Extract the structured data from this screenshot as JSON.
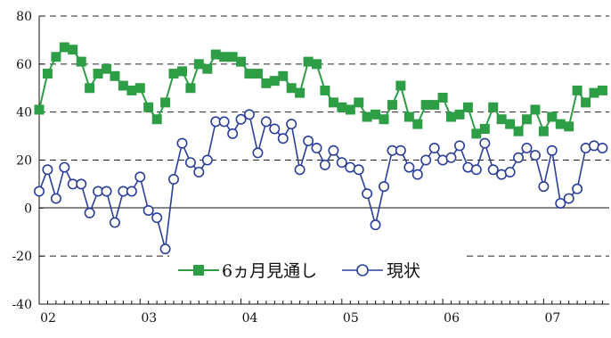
{
  "chart_data": {
    "type": "line",
    "title": "",
    "xlabel": "",
    "ylabel": "",
    "ylim": [
      -40,
      80
    ],
    "yticks": [
      -40,
      -20,
      0,
      20,
      40,
      60,
      80
    ],
    "y_tick_labels": [
      "-40",
      "-20",
      "0",
      "20",
      "40",
      "60",
      "80"
    ],
    "xlim": [
      2002.0,
      2007.65
    ],
    "x_tick_labels": [
      "02",
      "03",
      "04",
      "05",
      "06",
      "07"
    ],
    "grid": "horizontal dashed",
    "legend_position": "lower-center",
    "x": [
      2002.0,
      2002.083,
      2002.167,
      2002.25,
      2002.333,
      2002.417,
      2002.5,
      2002.583,
      2002.667,
      2002.75,
      2002.833,
      2002.917,
      2003.0,
      2003.083,
      2003.167,
      2003.25,
      2003.333,
      2003.417,
      2003.5,
      2003.583,
      2003.667,
      2003.75,
      2003.833,
      2003.917,
      2004.0,
      2004.083,
      2004.167,
      2004.25,
      2004.333,
      2004.417,
      2004.5,
      2004.583,
      2004.667,
      2004.75,
      2004.833,
      2004.917,
      2005.0,
      2005.083,
      2005.167,
      2005.25,
      2005.333,
      2005.417,
      2005.5,
      2005.583,
      2005.667,
      2005.75,
      2005.833,
      2005.917,
      2006.0,
      2006.083,
      2006.167,
      2006.25,
      2006.333,
      2006.417,
      2006.5,
      2006.583,
      2006.667,
      2006.75,
      2006.833,
      2006.917,
      2007.0,
      2007.083,
      2007.167,
      2007.25,
      2007.333,
      2007.417,
      2007.5,
      2007.583
    ],
    "series": [
      {
        "name": "6ヵ月見通し",
        "color": "#2e9e46",
        "marker": "square",
        "values": [
          41,
          56,
          63,
          67,
          66,
          61,
          50,
          56,
          58,
          55,
          51,
          49,
          50,
          42,
          37,
          44,
          56,
          57,
          50,
          60,
          58,
          64,
          63,
          63,
          61,
          56,
          56,
          52,
          53,
          55,
          50,
          48,
          61,
          60,
          49,
          44,
          42,
          41,
          44,
          38,
          39,
          37,
          43,
          51,
          38,
          35,
          43,
          43,
          46,
          38,
          39,
          42,
          31,
          33,
          42,
          37,
          35,
          32,
          37,
          41,
          32,
          38,
          35,
          34,
          49,
          44,
          48,
          49
        ]
      },
      {
        "name": "現状",
        "color": "#2b3f9a",
        "marker": "circle",
        "values": [
          7,
          16,
          4,
          17,
          10,
          10,
          -2,
          7,
          7,
          -6,
          7,
          7,
          13,
          -1,
          -4,
          -17,
          12,
          27,
          19,
          15,
          20,
          36,
          36,
          31,
          37,
          39,
          23,
          36,
          33,
          29,
          35,
          16,
          28,
          25,
          18,
          24,
          19,
          17,
          16,
          6,
          -7,
          9,
          24,
          24,
          17,
          14,
          20,
          25,
          20,
          21,
          26,
          17,
          16,
          27,
          16,
          14,
          15,
          21,
          25,
          22,
          9,
          24,
          2,
          4,
          8,
          25,
          26,
          25
        ]
      }
    ]
  }
}
